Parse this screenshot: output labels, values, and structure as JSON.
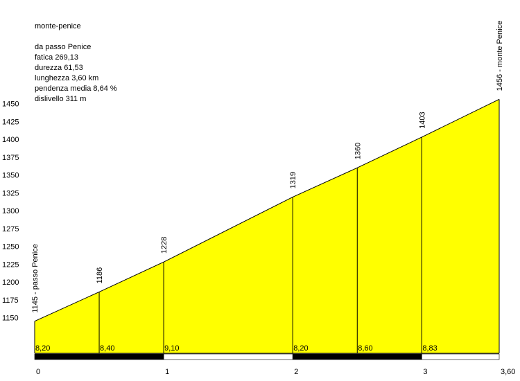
{
  "chart_data": {
    "type": "area",
    "title": "monte-penice",
    "annotations": [
      "da passo Penice",
      "fatica 269,13",
      "durezza 61,53",
      "lunghezza 3,60 km",
      "pendenza media 8,64 %",
      "dislivello 311 m"
    ],
    "x": [
      0,
      0.5,
      1,
      2,
      2.5,
      3,
      3.6
    ],
    "values": [
      1145,
      1186,
      1228,
      1319,
      1360,
      1403,
      1456
    ],
    "value_labels": [
      "1145 - passo Penice",
      "1186",
      "1228",
      "1319",
      "1360",
      "1403",
      "1456 - monte Penice"
    ],
    "gradient_values": [
      8.2,
      8.4,
      9.1,
      8.2,
      8.6,
      8.83
    ],
    "gradient_labels": [
      "8,20",
      "8,40",
      "9,10",
      "8,20",
      "8,60",
      "8,83"
    ],
    "color": "#ffff00",
    "xlim": [
      0,
      3.6
    ],
    "xticks": [
      0,
      1,
      2,
      3,
      {
        "value": 3.6,
        "label": "3,60"
      }
    ],
    "ylim": [
      1100,
      1450
    ],
    "yticks": [
      1150,
      1175,
      1200,
      1225,
      1250,
      1275,
      1300,
      1325,
      1350,
      1375,
      1400,
      1425,
      1450
    ]
  }
}
